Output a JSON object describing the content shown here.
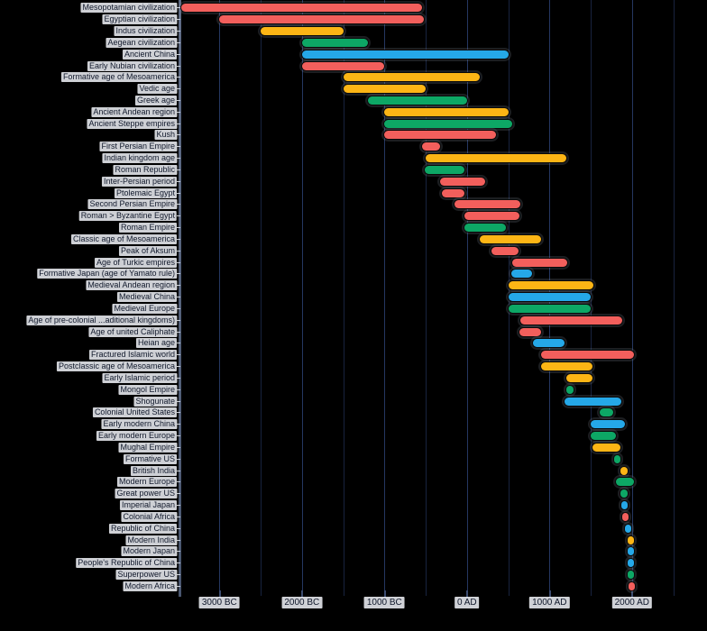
{
  "figure": {
    "background_color": "#000000",
    "title": ""
  },
  "colors": {
    "red": "#f25f5c",
    "yellow": "#fcb515",
    "green": "#0da765",
    "blue": "#25a8e8",
    "gridline_minor": "#18233f",
    "gridline_major": "#253761",
    "axis_spine": "#55617a",
    "label_box": "#dee0e5",
    "label_text": "#10182b"
  },
  "chart_data": {
    "type": "bar",
    "subtype": "horizontal-timeline-gantt",
    "title": "",
    "xlabel": "",
    "ylabel": "",
    "x_axis": {
      "major_ticks": [
        {
          "year": -3000,
          "label": "3000 BC"
        },
        {
          "year": -2000,
          "label": "2000 BC"
        },
        {
          "year": -1000,
          "label": "1000 BC"
        },
        {
          "year": 0,
          "label": "0 AD"
        },
        {
          "year": 1000,
          "label": "1000 AD"
        },
        {
          "year": 2000,
          "label": "2000 AD"
        }
      ],
      "minor_tick_years": [
        -2500,
        -1500,
        -500,
        500,
        1500,
        2500
      ],
      "domain": {
        "min_year": -3500,
        "max_year": 2910
      },
      "grid": true
    },
    "rows": [
      {
        "label": "Mesopotamian civilization",
        "start_year": -3500,
        "end_year": -540,
        "color": "red"
      },
      {
        "label": "Egyptian civilization",
        "start_year": -3000,
        "end_year": -525,
        "color": "red"
      },
      {
        "label": "Indus civilization",
        "start_year": -2500,
        "end_year": -1500,
        "color": "yellow"
      },
      {
        "label": "Aegean civilization",
        "start_year": -2000,
        "end_year": -1200,
        "color": "green"
      },
      {
        "label": "Ancient China",
        "start_year": -2000,
        "end_year": 500,
        "color": "blue"
      },
      {
        "label": "Early Nubian civilization",
        "start_year": -2000,
        "end_year": -1000,
        "color": "red"
      },
      {
        "label": "Formative age of Mesoamerica",
        "start_year": -1500,
        "end_year": 150,
        "color": "yellow"
      },
      {
        "label": "Vedic age",
        "start_year": -1500,
        "end_year": -500,
        "color": "yellow"
      },
      {
        "label": "Greek age",
        "start_year": -1200,
        "end_year": 0,
        "color": "green"
      },
      {
        "label": "Ancient Andean region",
        "start_year": -1000,
        "end_year": 500,
        "color": "yellow"
      },
      {
        "label": "Ancient Steppe empires",
        "start_year": -1000,
        "end_year": 550,
        "color": "green"
      },
      {
        "label": "Kush",
        "start_year": -1000,
        "end_year": 350,
        "color": "red"
      },
      {
        "label": "First Persian Empire",
        "start_year": -550,
        "end_year": -330,
        "color": "red"
      },
      {
        "label": "Indian kingdom age",
        "start_year": -500,
        "end_year": 1206,
        "color": "yellow"
      },
      {
        "label": "Roman Republic",
        "start_year": -509,
        "end_year": -27,
        "color": "green"
      },
      {
        "label": "Inter-Persian period",
        "start_year": -330,
        "end_year": 224,
        "color": "red"
      },
      {
        "label": "Ptolemaic Egypt",
        "start_year": -305,
        "end_year": -30,
        "color": "red"
      },
      {
        "label": "Second Persian Empire",
        "start_year": -150,
        "end_year": 651,
        "color": "red"
      },
      {
        "label": "Roman > Byzantine Egypt",
        "start_year": -30,
        "end_year": 641,
        "color": "red"
      },
      {
        "label": "Roman Empire",
        "start_year": -27,
        "end_year": 476,
        "color": "green"
      },
      {
        "label": "Classic age of Mesoamerica",
        "start_year": 150,
        "end_year": 900,
        "color": "yellow"
      },
      {
        "label": "Peak of Aksum",
        "start_year": 300,
        "end_year": 630,
        "color": "red"
      },
      {
        "label": "Age of Turkic empires",
        "start_year": 550,
        "end_year": 1220,
        "color": "red"
      },
      {
        "label": "Formative Japan (age of Yamato rule)",
        "start_year": 538,
        "end_year": 794,
        "color": "blue"
      },
      {
        "label": "Medieval Andean region",
        "start_year": 500,
        "end_year": 1533,
        "color": "yellow"
      },
      {
        "label": "Medieval China",
        "start_year": 500,
        "end_year": 1500,
        "color": "blue"
      },
      {
        "label": "Medieval Europe",
        "start_year": 500,
        "end_year": 1500,
        "color": "green"
      },
      {
        "label": "Age of pre-colonial ...aditional kingdoms)",
        "start_year": 650,
        "end_year": 1880,
        "color": "red"
      },
      {
        "label": "Age of united Caliphate",
        "start_year": 632,
        "end_year": 900,
        "color": "red"
      },
      {
        "label": "Heian age",
        "start_year": 794,
        "end_year": 1185,
        "color": "blue"
      },
      {
        "label": "Fractured Islamic world",
        "start_year": 900,
        "end_year": 2022,
        "color": "red"
      },
      {
        "label": "Postclassic age of Mesoamerica",
        "start_year": 900,
        "end_year": 1521,
        "color": "yellow"
      },
      {
        "label": "Early Islamic period",
        "start_year": 1206,
        "end_year": 1526,
        "color": "yellow"
      },
      {
        "label": "Mongol Empire",
        "start_year": 1206,
        "end_year": 1294,
        "color": "green"
      },
      {
        "label": "Shogunate",
        "start_year": 1185,
        "end_year": 1868,
        "color": "blue"
      },
      {
        "label": "Colonial United States",
        "start_year": 1607,
        "end_year": 1776,
        "color": "green"
      },
      {
        "label": "Early modern China",
        "start_year": 1500,
        "end_year": 1912,
        "color": "blue"
      },
      {
        "label": "Early modern Europe",
        "start_year": 1500,
        "end_year": 1800,
        "color": "green"
      },
      {
        "label": "Mughal Empire",
        "start_year": 1526,
        "end_year": 1857,
        "color": "yellow"
      },
      {
        "label": "Formative US",
        "start_year": 1783,
        "end_year": 1865,
        "color": "green"
      },
      {
        "label": "British India",
        "start_year": 1858,
        "end_year": 1947,
        "color": "yellow"
      },
      {
        "label": "Modern Europe",
        "start_year": 1800,
        "end_year": 2022,
        "color": "green"
      },
      {
        "label": "Great power US",
        "start_year": 1865,
        "end_year": 1945,
        "color": "green"
      },
      {
        "label": "Imperial Japan",
        "start_year": 1868,
        "end_year": 1945,
        "color": "blue"
      },
      {
        "label": "Colonial Africa",
        "start_year": 1880,
        "end_year": 1960,
        "color": "red"
      },
      {
        "label": "Republic of China",
        "start_year": 1912,
        "end_year": 1949,
        "color": "blue"
      },
      {
        "label": "Modern India",
        "start_year": 1947,
        "end_year": 2022,
        "color": "yellow"
      },
      {
        "label": "Modern Japan",
        "start_year": 1945,
        "end_year": 2022,
        "color": "blue"
      },
      {
        "label": "People's Republic of China",
        "start_year": 1949,
        "end_year": 2022,
        "color": "blue"
      },
      {
        "label": "Superpower US",
        "start_year": 1945,
        "end_year": 2022,
        "color": "green"
      },
      {
        "label": "Modern Africa",
        "start_year": 1960,
        "end_year": 2022,
        "color": "red"
      }
    ]
  }
}
